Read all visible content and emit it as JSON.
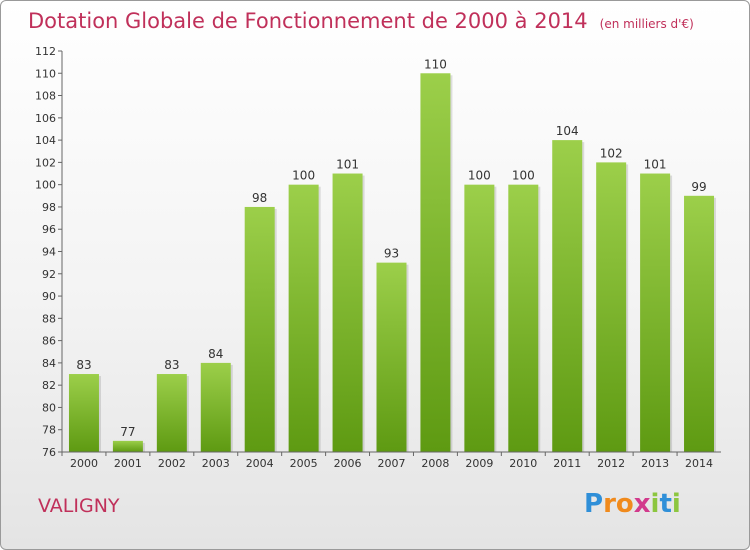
{
  "title": "Dotation Globale de Fonctionnement de 2000 à 2014",
  "subtitle": "(en milliers d'€)",
  "commune": "VALIGNY",
  "logo": [
    "P",
    "r",
    "o",
    "x",
    "i",
    "t",
    "i"
  ],
  "colors": {
    "bar_top": "#9ccf4a",
    "bar_bottom": "#5e9a12",
    "title": "#c0305a"
  },
  "chart_data": {
    "type": "bar",
    "categories": [
      "2000",
      "2001",
      "2002",
      "2003",
      "2004",
      "2005",
      "2006",
      "2007",
      "2008",
      "2009",
      "2010",
      "2011",
      "2012",
      "2013",
      "2014"
    ],
    "values": [
      83,
      77,
      83,
      84,
      98,
      100,
      101,
      93,
      110,
      100,
      100,
      104,
      102,
      101,
      99
    ],
    "ylim": [
      76,
      112
    ],
    "yticks": [
      76,
      78,
      80,
      82,
      84,
      86,
      88,
      90,
      92,
      94,
      96,
      98,
      100,
      102,
      104,
      106,
      108,
      110,
      112
    ],
    "grid": false,
    "legend": "none"
  }
}
